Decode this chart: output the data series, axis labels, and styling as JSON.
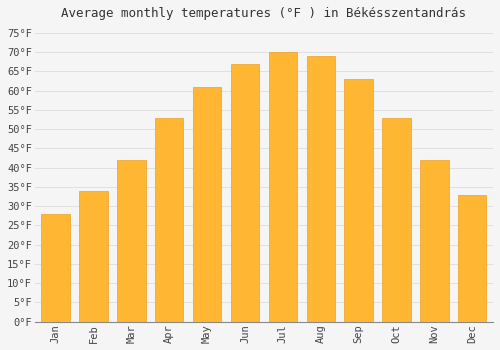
{
  "title": "Average monthly temperatures (°F ) in BÃ©kÃ©sszentandrÃ¡s",
  "title_raw": "Average monthly temperatures (°F ) in Békésszentandrás",
  "months": [
    "Jan",
    "Feb",
    "Mar",
    "Apr",
    "May",
    "Jun",
    "Jul",
    "Aug",
    "Sep",
    "Oct",
    "Nov",
    "Dec"
  ],
  "values": [
    28,
    34,
    42,
    53,
    61,
    67,
    70,
    69,
    63,
    53,
    42,
    33
  ],
  "bar_color_top": "#FFB733",
  "bar_color_bot": "#FFA000",
  "bar_edge_color": "#E8930A",
  "ylim": [
    0,
    77
  ],
  "yticks": [
    0,
    5,
    10,
    15,
    20,
    25,
    30,
    35,
    40,
    45,
    50,
    55,
    60,
    65,
    70,
    75
  ],
  "background_color": "#f5f5f5",
  "grid_color": "#dddddd",
  "title_fontsize": 9,
  "tick_fontsize": 7.5
}
